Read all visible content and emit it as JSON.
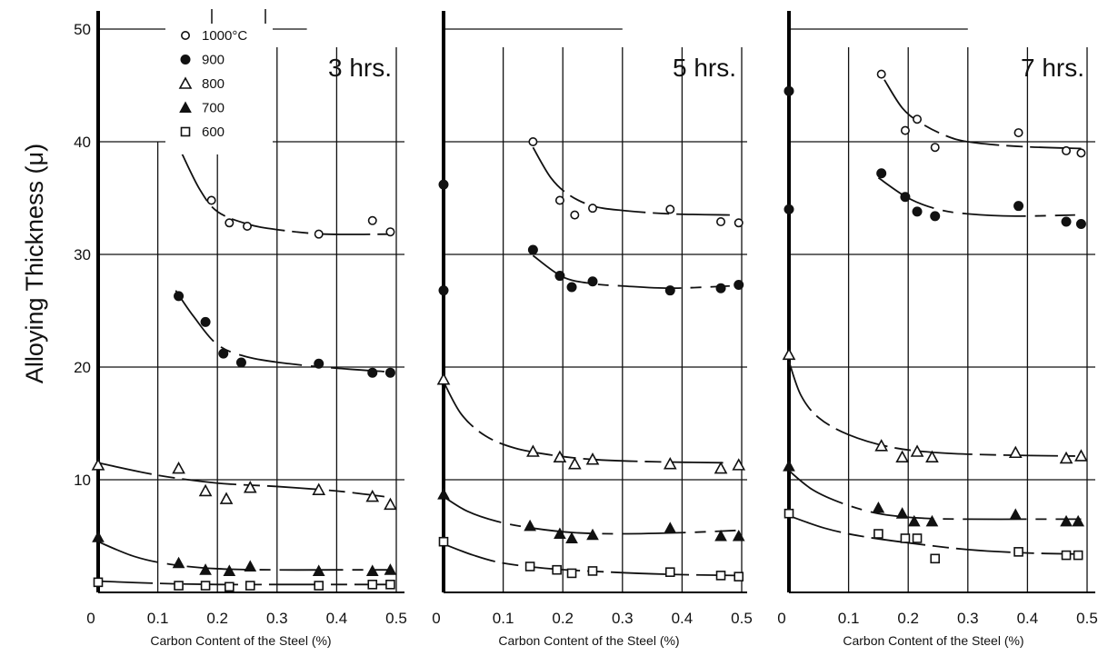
{
  "figure": {
    "ylabel": "Alloying Thickness (μ)",
    "xlabel": "Carbon Content of the Steel (%)"
  },
  "legend": {
    "entries": [
      {
        "label": "1000°C",
        "marker": "circle-open"
      },
      {
        "label": "900",
        "marker": "circle-filled"
      },
      {
        "label": "800",
        "marker": "triangle-open"
      },
      {
        "label": "700",
        "marker": "triangle-filled"
      },
      {
        "label": "600",
        "marker": "square-open"
      }
    ]
  },
  "chart_data": [
    {
      "type": "scatter",
      "title": "3 hrs.",
      "xlabel": "Carbon Content of the Steel (%)",
      "ylabel": "Alloying Thickness (μ)",
      "xlim": [
        0,
        0.55
      ],
      "ylim": [
        0,
        52
      ],
      "xticks": [
        0,
        0.1,
        0.2,
        0.3,
        0.4,
        0.5
      ],
      "yticks": [
        10,
        20,
        30,
        40,
        50
      ],
      "series": [
        {
          "name": "1000°C",
          "marker": "circle-open",
          "x": [
            0.135,
            0.19,
            0.22,
            0.25,
            0.37,
            0.46,
            0.49
          ],
          "y": [
            39.5,
            34.8,
            32.8,
            32.5,
            31.8,
            33.0,
            32.0
          ],
          "curve": {
            "x": [
              0.14,
              0.17,
              0.2,
              0.25,
              0.3,
              0.38,
              0.49
            ],
            "y": [
              39.0,
              35.8,
              33.8,
              32.7,
              32.2,
              31.8,
              31.8
            ]
          }
        },
        {
          "name": "900",
          "marker": "circle-filled",
          "x": [
            0.135,
            0.18,
            0.21,
            0.24,
            0.37,
            0.46,
            0.49
          ],
          "y": [
            26.3,
            24.0,
            21.2,
            20.4,
            20.3,
            19.5,
            19.5
          ],
          "curve": {
            "x": [
              0.13,
              0.16,
              0.2,
              0.25,
              0.32,
              0.4,
              0.48
            ],
            "y": [
              26.8,
              24.5,
              22.0,
              20.9,
              20.3,
              19.9,
              19.6
            ]
          }
        },
        {
          "name": "800",
          "marker": "triangle-open",
          "x": [
            0.0,
            0.135,
            0.18,
            0.215,
            0.255,
            0.37,
            0.46,
            0.49
          ],
          "y": [
            11.3,
            11.0,
            9.0,
            8.3,
            9.3,
            9.1,
            8.5,
            7.8
          ],
          "curve": {
            "x": [
              0.0,
              0.1,
              0.2,
              0.3,
              0.4,
              0.48
            ],
            "y": [
              11.5,
              10.4,
              9.7,
              9.4,
              9.0,
              8.5
            ]
          }
        },
        {
          "name": "700",
          "marker": "triangle-filled",
          "x": [
            0.0,
            0.135,
            0.18,
            0.22,
            0.255,
            0.37,
            0.46,
            0.49
          ],
          "y": [
            4.9,
            2.6,
            2.0,
            1.9,
            2.3,
            1.9,
            1.9,
            2.0
          ],
          "curve": {
            "x": [
              0.0,
              0.06,
              0.12,
              0.2,
              0.3,
              0.4,
              0.49
            ],
            "y": [
              4.5,
              3.2,
              2.5,
              2.1,
              2.0,
              2.0,
              2.0
            ]
          }
        },
        {
          "name": "600",
          "marker": "square-open",
          "x": [
            0.0,
            0.135,
            0.18,
            0.22,
            0.255,
            0.37,
            0.46,
            0.49
          ],
          "y": [
            0.9,
            0.6,
            0.6,
            0.5,
            0.6,
            0.6,
            0.7,
            0.7
          ],
          "curve": {
            "x": [
              0.0,
              0.1,
              0.2,
              0.3,
              0.4,
              0.49
            ],
            "y": [
              1.0,
              0.8,
              0.7,
              0.7,
              0.7,
              0.7
            ]
          }
        }
      ]
    },
    {
      "type": "scatter",
      "title": "5 hrs.",
      "xlabel": "Carbon Content of the Steel (%)",
      "ylabel": "Alloying Thickness (μ)",
      "xlim": [
        0,
        0.55
      ],
      "ylim": [
        0,
        52
      ],
      "xticks": [
        0,
        0.1,
        0.2,
        0.3,
        0.4,
        0.5
      ],
      "series": [
        {
          "name": "1000°C",
          "marker": "circle-open",
          "x": [
            0.15,
            0.195,
            0.22,
            0.25,
            0.38,
            0.465,
            0.495
          ],
          "y": [
            40.0,
            34.8,
            33.5,
            34.1,
            34.0,
            32.9,
            32.8
          ],
          "curve": {
            "x": [
              0.15,
              0.18,
              0.21,
              0.25,
              0.3,
              0.38,
              0.48
            ],
            "y": [
              39.5,
              36.8,
              35.3,
              34.3,
              33.9,
              33.6,
              33.5
            ]
          }
        },
        {
          "name": "900",
          "marker": "circle-filled",
          "x": [
            0.0,
            0.0,
            0.15,
            0.195,
            0.215,
            0.25,
            0.38,
            0.465,
            0.495
          ],
          "y": [
            36.2,
            26.8,
            30.4,
            28.1,
            27.1,
            27.6,
            26.8,
            27.0,
            27.3
          ],
          "curve": {
            "x": [
              0.15,
              0.2,
              0.25,
              0.3,
              0.38,
              0.48
            ],
            "y": [
              29.9,
              28.0,
              27.4,
              27.2,
              27.0,
              27.2
            ]
          }
        },
        {
          "name": "800",
          "marker": "triangle-open",
          "x": [
            0.0,
            0.15,
            0.195,
            0.22,
            0.25,
            0.38,
            0.465,
            0.495
          ],
          "y": [
            18.9,
            12.5,
            12.0,
            11.4,
            11.8,
            11.4,
            11.0,
            11.3
          ],
          "curve": {
            "x": [
              0.0,
              0.03,
              0.07,
              0.12,
              0.18,
              0.25,
              0.35,
              0.48
            ],
            "y": [
              18.7,
              15.8,
              13.9,
              12.8,
              12.2,
              11.8,
              11.6,
              11.5
            ]
          }
        },
        {
          "name": "700",
          "marker": "triangle-filled",
          "x": [
            0.0,
            0.145,
            0.195,
            0.215,
            0.25,
            0.38,
            0.465,
            0.495
          ],
          "y": [
            8.7,
            5.9,
            5.2,
            4.8,
            5.1,
            5.7,
            5.0,
            5.0
          ],
          "curve": {
            "x": [
              0.0,
              0.04,
              0.09,
              0.15,
              0.22,
              0.3,
              0.4,
              0.49
            ],
            "y": [
              8.5,
              7.2,
              6.3,
              5.7,
              5.3,
              5.2,
              5.3,
              5.5
            ]
          }
        },
        {
          "name": "600",
          "marker": "square-open",
          "x": [
            0.0,
            0.145,
            0.19,
            0.215,
            0.25,
            0.38,
            0.465,
            0.495
          ],
          "y": [
            4.5,
            2.3,
            2.0,
            1.7,
            1.9,
            1.8,
            1.5,
            1.4
          ],
          "curve": {
            "x": [
              0.0,
              0.05,
              0.1,
              0.18,
              0.28,
              0.38,
              0.49
            ],
            "y": [
              4.3,
              3.3,
              2.6,
              2.1,
              1.8,
              1.6,
              1.5
            ]
          }
        }
      ]
    },
    {
      "type": "scatter",
      "title": "7 hrs.",
      "xlabel": "Carbon Content of the Steel (%)",
      "ylabel": "Alloying Thickness (μ)",
      "xlim": [
        0,
        0.55
      ],
      "ylim": [
        0,
        52
      ],
      "xticks": [
        0,
        0.1,
        0.2,
        0.3,
        0.4,
        0.5
      ],
      "series": [
        {
          "name": "1000°C",
          "marker": "circle-open",
          "x": [
            0.155,
            0.195,
            0.215,
            0.245,
            0.385,
            0.465,
            0.49
          ],
          "y": [
            46.0,
            41.0,
            42.0,
            39.5,
            40.8,
            39.2,
            39.0
          ],
          "curve": {
            "x": [
              0.16,
              0.19,
              0.22,
              0.26,
              0.3,
              0.38,
              0.49
            ],
            "y": [
              45.5,
              43.0,
              41.7,
              40.6,
              40.0,
              39.6,
              39.4
            ]
          }
        },
        {
          "name": "900",
          "marker": "circle-filled",
          "x": [
            0.0,
            0.0,
            0.155,
            0.195,
            0.215,
            0.245,
            0.385,
            0.465,
            0.49
          ],
          "y": [
            44.5,
            34.0,
            37.2,
            35.1,
            33.8,
            33.4,
            34.3,
            32.9,
            32.7
          ],
          "curve": {
            "x": [
              0.15,
              0.2,
              0.25,
              0.3,
              0.38,
              0.48
            ],
            "y": [
              36.8,
              35.0,
              34.0,
              33.6,
              33.4,
              33.5
            ]
          }
        },
        {
          "name": "800",
          "marker": "triangle-open",
          "x": [
            0.0,
            0.155,
            0.19,
            0.215,
            0.24,
            0.38,
            0.465,
            0.49
          ],
          "y": [
            21.1,
            13.0,
            12.0,
            12.5,
            12.0,
            12.4,
            11.9,
            12.1
          ],
          "curve": {
            "x": [
              0.0,
              0.02,
              0.05,
              0.1,
              0.17,
              0.25,
              0.35,
              0.48
            ],
            "y": [
              20.5,
              17.5,
              15.5,
              14.0,
              12.9,
              12.4,
              12.2,
              12.1
            ]
          }
        },
        {
          "name": "700",
          "marker": "triangle-filled",
          "x": [
            0.0,
            0.15,
            0.19,
            0.21,
            0.24,
            0.38,
            0.465,
            0.485
          ],
          "y": [
            11.2,
            7.5,
            7.0,
            6.3,
            6.3,
            6.9,
            6.3,
            6.3
          ],
          "curve": {
            "x": [
              0.0,
              0.04,
              0.09,
              0.15,
              0.22,
              0.3,
              0.4,
              0.49
            ],
            "y": [
              10.8,
              9.1,
              7.9,
              7.0,
              6.6,
              6.5,
              6.5,
              6.5
            ]
          }
        },
        {
          "name": "600",
          "marker": "square-open",
          "x": [
            0.0,
            0.15,
            0.195,
            0.215,
            0.245,
            0.385,
            0.465,
            0.485
          ],
          "y": [
            7.0,
            5.2,
            4.8,
            4.8,
            3.0,
            3.6,
            3.3,
            3.3
          ],
          "curve": {
            "x": [
              0.0,
              0.06,
              0.12,
              0.2,
              0.3,
              0.4,
              0.49
            ],
            "y": [
              6.8,
              5.7,
              5.0,
              4.4,
              3.8,
              3.5,
              3.4
            ]
          }
        }
      ]
    }
  ]
}
